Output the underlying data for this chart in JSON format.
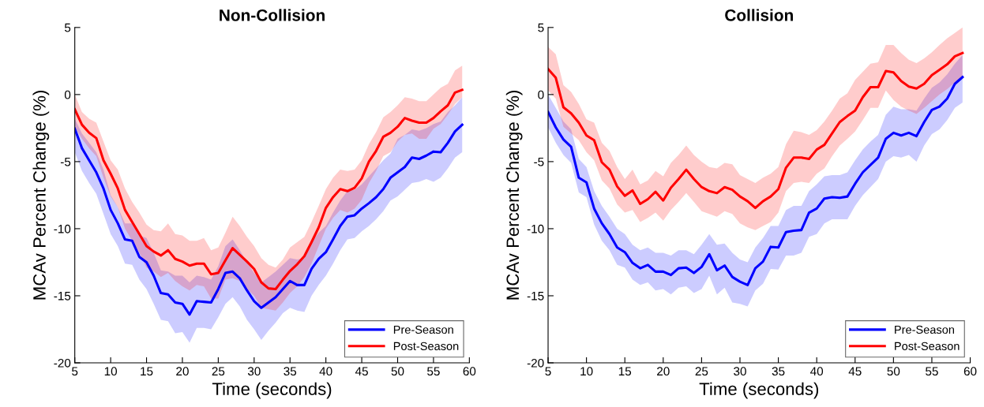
{
  "chart_data": [
    {
      "type": "line",
      "title": "Non-Collision",
      "xlabel": "Time (seconds)",
      "ylabel": "MCAv Percent Change (%)",
      "x": [
        5,
        6,
        7,
        8,
        9,
        10,
        11,
        12,
        13,
        14,
        15,
        16,
        17,
        18,
        19,
        20,
        21,
        22,
        23,
        24,
        25,
        26,
        27,
        28,
        29,
        30,
        31,
        32,
        33,
        34,
        35,
        36,
        37,
        38,
        39,
        40,
        41,
        42,
        43,
        44,
        45,
        46,
        47,
        48,
        49,
        50,
        51,
        52,
        53,
        54,
        55,
        56,
        57,
        58,
        59
      ],
      "xlim": [
        5,
        60
      ],
      "xticks": [
        5,
        10,
        15,
        20,
        25,
        30,
        35,
        40,
        45,
        50,
        55,
        60
      ],
      "ylim": [
        -20,
        5
      ],
      "yticks": [
        -20,
        -15,
        -10,
        -5,
        0,
        5
      ],
      "grid": false,
      "legend": "bottom right",
      "series": [
        {
          "name": "Pre-Season",
          "color": "#0000ff",
          "values": [
            -2.55,
            -4.0,
            -4.9,
            -5.8,
            -7.0,
            -8.6,
            -9.6,
            -10.8,
            -10.9,
            -12.1,
            -12.5,
            -13.5,
            -14.8,
            -14.9,
            -15.5,
            -15.6,
            -16.4,
            -15.4,
            -15.45,
            -15.5,
            -14.5,
            -13.3,
            -13.2,
            -13.7,
            -14.6,
            -15.4,
            -15.9,
            -15.5,
            -15.1,
            -14.5,
            -13.9,
            -14.2,
            -14.2,
            -13.0,
            -12.25,
            -11.75,
            -10.8,
            -9.8,
            -9.1,
            -9.0,
            -8.5,
            -8.1,
            -7.65,
            -7.05,
            -6.2,
            -5.8,
            -5.4,
            -4.7,
            -4.8,
            -4.55,
            -4.25,
            -4.3,
            -3.6,
            -2.75,
            -2.25
          ],
          "lower": [
            -4.3,
            -5.7,
            -6.6,
            -7.4,
            -8.9,
            -10.4,
            -11.3,
            -12.6,
            -12.7,
            -13.8,
            -14.5,
            -15.6,
            -16.8,
            -16.9,
            -17.8,
            -17.7,
            -18.5,
            -17.4,
            -17.4,
            -17.5,
            -16.6,
            -15.6,
            -15.1,
            -15.8,
            -16.8,
            -17.5,
            -18.3,
            -17.6,
            -17.0,
            -16.3,
            -15.9,
            -16.1,
            -16.2,
            -15.0,
            -14.2,
            -13.5,
            -12.6,
            -11.6,
            -10.8,
            -10.7,
            -10.2,
            -9.8,
            -9.3,
            -8.7,
            -7.9,
            -7.6,
            -7.1,
            -6.6,
            -6.5,
            -6.3,
            -6.5,
            -6.2,
            -5.5,
            -4.7,
            -4.3
          ],
          "upper": [
            -1.8,
            -2.9,
            -3.6,
            -4.3,
            -5.6,
            -7.5,
            -8.4,
            -9.6,
            -9.6,
            -10.5,
            -10.7,
            -11.8,
            -13.1,
            -13.2,
            -13.5,
            -13.5,
            -14.0,
            -13.5,
            -13.6,
            -13.8,
            -12.8,
            -11.3,
            -10.8,
            -11.6,
            -12.5,
            -13.3,
            -14.0,
            -13.6,
            -13.2,
            -12.7,
            -12.2,
            -12.3,
            -12.2,
            -11.0,
            -10.3,
            -9.8,
            -8.8,
            -7.9,
            -7.2,
            -7.1,
            -6.7,
            -6.1,
            -5.5,
            -4.9,
            -4.4,
            -3.3,
            -3.0,
            -2.6,
            -2.7,
            -2.5,
            -2.2,
            -2.0,
            -1.3,
            -0.8,
            -0.2
          ]
        },
        {
          "name": "Post-Season",
          "color": "#ff0000",
          "values": [
            -1.1,
            -2.25,
            -2.85,
            -3.25,
            -4.9,
            -5.9,
            -7.0,
            -8.6,
            -9.5,
            -10.4,
            -11.3,
            -11.7,
            -12.0,
            -11.6,
            -12.25,
            -12.45,
            -12.75,
            -12.6,
            -12.6,
            -13.4,
            -13.3,
            -12.35,
            -11.45,
            -11.95,
            -12.45,
            -13.0,
            -14.0,
            -14.45,
            -14.5,
            -13.8,
            -13.15,
            -12.65,
            -12.05,
            -11.0,
            -9.9,
            -8.45,
            -7.65,
            -7.05,
            -7.2,
            -6.95,
            -6.25,
            -5.0,
            -4.2,
            -3.15,
            -2.85,
            -2.4,
            -1.75,
            -1.95,
            -2.1,
            -2.1,
            -1.75,
            -1.25,
            -0.8,
            0.15,
            0.35
          ],
          "lower": [
            -2.4,
            -3.3,
            -4.0,
            -4.6,
            -6.2,
            -7.6,
            -8.4,
            -10.0,
            -10.9,
            -11.8,
            -12.9,
            -13.2,
            -13.6,
            -13.3,
            -13.9,
            -14.3,
            -14.6,
            -14.2,
            -14.3,
            -15.2,
            -15.2,
            -13.8,
            -13.7,
            -13.9,
            -14.5,
            -15.0,
            -15.9,
            -16.0,
            -16.1,
            -15.5,
            -14.8,
            -14.3,
            -13.6,
            -12.6,
            -11.3,
            -10.0,
            -9.2,
            -8.6,
            -8.8,
            -8.5,
            -7.85,
            -6.6,
            -5.7,
            -4.6,
            -4.3,
            -3.5,
            -3.0,
            -2.9,
            -3.3,
            -3.3,
            -2.55,
            -2.2,
            -1.5,
            -0.7,
            -0.2
          ],
          "upper": [
            0.0,
            -1.3,
            -1.8,
            -2.1,
            -3.5,
            -4.9,
            -5.6,
            -7.0,
            -8.0,
            -8.8,
            -9.7,
            -10.1,
            -10.2,
            -9.6,
            -10.4,
            -10.5,
            -10.9,
            -10.9,
            -10.7,
            -11.6,
            -11.4,
            -10.3,
            -9.1,
            -9.8,
            -10.6,
            -11.3,
            -12.2,
            -12.7,
            -12.9,
            -12.3,
            -11.4,
            -11.0,
            -10.6,
            -9.5,
            -8.3,
            -7.05,
            -6.2,
            -5.6,
            -5.7,
            -5.6,
            -4.9,
            -3.7,
            -2.8,
            -1.7,
            -1.3,
            -0.8,
            -0.2,
            -0.3,
            -0.5,
            -0.5,
            0.0,
            0.5,
            0.8,
            1.8,
            2.15
          ]
        }
      ]
    },
    {
      "type": "line",
      "title": "Collision",
      "xlabel": "Time (seconds)",
      "ylabel": "MCAv Percent Change (%)",
      "x": [
        5,
        6,
        7,
        8,
        9,
        10,
        11,
        12,
        13,
        14,
        15,
        16,
        17,
        18,
        19,
        20,
        21,
        22,
        23,
        24,
        25,
        26,
        27,
        28,
        29,
        30,
        31,
        32,
        33,
        34,
        35,
        36,
        37,
        38,
        39,
        40,
        41,
        42,
        43,
        44,
        45,
        46,
        47,
        48,
        49,
        50,
        51,
        52,
        53,
        54,
        55,
        56,
        57,
        58,
        59
      ],
      "xlim": [
        5,
        60
      ],
      "xticks": [
        5,
        10,
        15,
        20,
        25,
        30,
        35,
        40,
        45,
        50,
        55,
        60
      ],
      "ylim": [
        -20,
        5
      ],
      "yticks": [
        -20,
        -15,
        -10,
        -5,
        0,
        5
      ],
      "grid": false,
      "legend": "bottom right",
      "series": [
        {
          "name": "Pre-Season",
          "color": "#0000ff",
          "values": [
            -1.3,
            -2.45,
            -3.35,
            -3.9,
            -6.2,
            -6.55,
            -8.5,
            -9.6,
            -10.4,
            -11.4,
            -11.75,
            -12.55,
            -12.95,
            -12.7,
            -13.2,
            -13.2,
            -13.45,
            -12.95,
            -12.9,
            -13.3,
            -12.85,
            -11.9,
            -13.1,
            -12.75,
            -13.6,
            -13.95,
            -14.2,
            -12.95,
            -12.45,
            -11.35,
            -11.4,
            -10.25,
            -10.15,
            -10.1,
            -8.8,
            -8.5,
            -7.75,
            -7.65,
            -7.7,
            -7.6,
            -6.65,
            -5.8,
            -5.25,
            -4.7,
            -3.3,
            -2.85,
            -3.05,
            -2.85,
            -3.1,
            -2.05,
            -1.15,
            -0.9,
            -0.3,
            0.8,
            1.3
          ],
          "lower": [
            -2.45,
            -3.6,
            -4.5,
            -5.1,
            -7.3,
            -7.65,
            -9.7,
            -10.9,
            -11.6,
            -12.7,
            -12.9,
            -13.8,
            -14.2,
            -14.0,
            -14.6,
            -14.5,
            -14.9,
            -14.4,
            -14.3,
            -14.8,
            -14.5,
            -13.5,
            -14.9,
            -14.4,
            -15.5,
            -15.6,
            -15.8,
            -14.6,
            -14.1,
            -13.0,
            -13.05,
            -12.0,
            -12.0,
            -11.8,
            -10.6,
            -10.4,
            -9.6,
            -9.3,
            -9.3,
            -9.3,
            -8.3,
            -7.5,
            -6.9,
            -6.3,
            -5.0,
            -4.6,
            -4.7,
            -4.5,
            -5.0,
            -3.8,
            -2.95,
            -2.6,
            -1.9,
            -1.0,
            -0.6
          ],
          "upper": [
            0.0,
            -1.0,
            -2.0,
            -2.6,
            -4.8,
            -5.4,
            -7.2,
            -8.3,
            -9.1,
            -10.0,
            -10.4,
            -11.2,
            -11.6,
            -11.4,
            -11.8,
            -11.8,
            -12.0,
            -11.6,
            -11.6,
            -11.9,
            -11.2,
            -10.4,
            -11.2,
            -11.1,
            -11.8,
            -12.3,
            -12.5,
            -11.4,
            -10.7,
            -9.8,
            -9.8,
            -8.6,
            -8.3,
            -8.3,
            -7.2,
            -6.7,
            -6.1,
            -6.0,
            -6.0,
            -5.8,
            -4.9,
            -4.1,
            -3.5,
            -3.0,
            -1.5,
            -0.9,
            -1.1,
            -1.1,
            -1.2,
            -0.3,
            0.5,
            0.9,
            1.5,
            2.3,
            2.95
          ]
        },
        {
          "name": "Post-Season",
          "color": "#ff0000",
          "values": [
            1.9,
            1.25,
            -0.95,
            -1.4,
            -2.1,
            -3.05,
            -3.4,
            -5.05,
            -5.6,
            -6.85,
            -7.55,
            -7.15,
            -8.15,
            -7.8,
            -7.25,
            -7.9,
            -6.95,
            -6.3,
            -5.6,
            -6.3,
            -6.9,
            -7.2,
            -7.35,
            -6.9,
            -7.1,
            -7.6,
            -7.95,
            -8.45,
            -7.95,
            -7.6,
            -7.05,
            -5.45,
            -4.7,
            -4.7,
            -4.8,
            -4.1,
            -3.75,
            -2.9,
            -2.05,
            -1.6,
            -1.2,
            -0.2,
            0.55,
            0.55,
            1.75,
            1.65,
            1.0,
            0.6,
            0.45,
            0.8,
            1.45,
            1.85,
            2.25,
            2.85,
            3.1
          ],
          "lower": [
            0.3,
            -0.3,
            -2.4,
            -2.9,
            -3.4,
            -4.3,
            -4.9,
            -6.4,
            -7.0,
            -8.2,
            -8.8,
            -8.6,
            -9.5,
            -9.2,
            -8.8,
            -9.4,
            -8.6,
            -8.0,
            -7.35,
            -8.0,
            -8.7,
            -8.9,
            -9.1,
            -8.7,
            -8.9,
            -9.6,
            -9.9,
            -10.1,
            -9.8,
            -9.5,
            -8.8,
            -7.2,
            -6.6,
            -6.5,
            -6.6,
            -5.9,
            -5.5,
            -4.6,
            -3.8,
            -3.3,
            -2.75,
            -1.9,
            -1.0,
            -1.0,
            0.3,
            -0.4,
            -0.9,
            -1.2,
            -1.45,
            -1.0,
            -0.5,
            0.0,
            0.4,
            0.9,
            1.3
          ],
          "upper": [
            3.55,
            3.0,
            0.7,
            0.2,
            -0.7,
            -1.85,
            -2.1,
            -3.6,
            -4.2,
            -5.4,
            -6.3,
            -5.6,
            -6.7,
            -6.4,
            -5.7,
            -6.1,
            -5.1,
            -4.5,
            -3.8,
            -4.5,
            -5.0,
            -5.4,
            -5.5,
            -5.1,
            -5.2,
            -6.0,
            -6.3,
            -6.6,
            -6.2,
            -5.9,
            -5.4,
            -3.7,
            -2.7,
            -2.8,
            -3.0,
            -2.65,
            -2.0,
            -1.2,
            -0.3,
            0.1,
            1.1,
            1.7,
            2.3,
            2.4,
            3.7,
            3.7,
            3.1,
            2.6,
            2.35,
            2.7,
            3.15,
            3.7,
            4.2,
            4.6,
            5.0
          ]
        }
      ]
    }
  ]
}
